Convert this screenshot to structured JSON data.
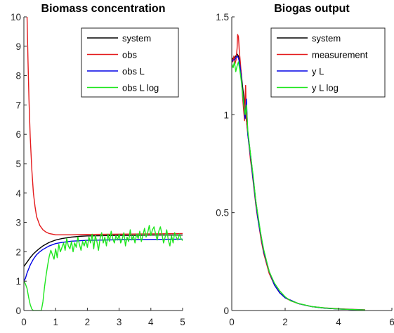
{
  "chart_data": [
    {
      "type": "line",
      "title": "Biomass concentration",
      "xlabel": "",
      "ylabel": "",
      "xlim": [
        0,
        5
      ],
      "ylim": [
        0,
        10
      ],
      "x_ticks": [
        0,
        1,
        2,
        3,
        4,
        5
      ],
      "y_ticks": [
        0,
        1,
        2,
        3,
        4,
        5,
        6,
        7,
        8,
        9,
        10
      ],
      "x_tick_labels": [
        "0",
        "1",
        "2",
        "3",
        "4",
        "5"
      ],
      "y_tick_labels": [
        "0",
        "1",
        "2",
        "3",
        "4",
        "5",
        "6",
        "7",
        "8",
        "9",
        "10"
      ],
      "grid": false,
      "legend_position": "top-right",
      "series": [
        {
          "name": "system",
          "color": "#000000",
          "x": [
            0,
            0.1,
            0.2,
            0.3,
            0.4,
            0.5,
            0.6,
            0.8,
            1.0,
            1.2,
            1.5,
            1.8,
            2.0,
            2.5,
            3.0,
            3.5,
            4.0,
            4.5,
            5.0
          ],
          "y": [
            1.5,
            1.65,
            1.8,
            1.93,
            2.03,
            2.12,
            2.2,
            2.32,
            2.4,
            2.45,
            2.5,
            2.53,
            2.54,
            2.55,
            2.56,
            2.56,
            2.57,
            2.57,
            2.57
          ]
        },
        {
          "name": "obs",
          "color": "#e41a1c",
          "x": [
            0.1,
            0.13,
            0.16,
            0.2,
            0.25,
            0.3,
            0.35,
            0.4,
            0.5,
            0.6,
            0.7,
            0.8,
            0.9,
            1.0,
            1.2,
            1.5,
            2.0,
            3.0,
            4.0,
            5.0
          ],
          "y": [
            10,
            8.5,
            7.2,
            5.9,
            4.8,
            4.0,
            3.55,
            3.2,
            2.9,
            2.75,
            2.67,
            2.62,
            2.6,
            2.58,
            2.58,
            2.58,
            2.59,
            2.6,
            2.61,
            2.62
          ]
        },
        {
          "name": "obs L",
          "color": "#0000e6",
          "x": [
            0,
            0.05,
            0.1,
            0.2,
            0.3,
            0.4,
            0.5,
            0.6,
            0.8,
            1.0,
            1.2,
            1.5,
            2.0,
            2.5,
            3.0,
            4.0,
            5.0
          ],
          "y": [
            1.0,
            1.1,
            1.28,
            1.55,
            1.75,
            1.9,
            2.0,
            2.08,
            2.2,
            2.28,
            2.32,
            2.36,
            2.39,
            2.4,
            2.41,
            2.42,
            2.43
          ]
        },
        {
          "name": "obs L log",
          "color": "#1ee61e",
          "x": [
            0,
            0.05,
            0.1,
            0.15,
            0.2,
            0.25,
            0.3,
            0.55,
            0.6,
            0.65,
            0.7,
            0.75,
            0.8,
            0.85,
            0.9,
            0.95,
            1.0,
            1.05,
            1.1,
            1.15,
            1.2,
            1.25,
            1.3,
            1.35,
            1.4,
            1.45,
            1.5,
            1.55,
            1.6,
            1.65,
            1.7,
            1.75,
            1.8,
            1.85,
            1.9,
            1.95,
            2.0,
            2.05,
            2.1,
            2.15,
            2.2,
            2.25,
            2.3,
            2.35,
            2.4,
            2.45,
            2.5,
            2.55,
            2.6,
            2.65,
            2.7,
            2.75,
            2.8,
            2.85,
            2.9,
            2.95,
            3.0,
            3.05,
            3.1,
            3.15,
            3.2,
            3.25,
            3.3,
            3.35,
            3.4,
            3.45,
            3.5,
            3.55,
            3.6,
            3.65,
            3.7,
            3.75,
            3.8,
            3.85,
            3.9,
            3.95,
            4.0,
            4.05,
            4.1,
            4.15,
            4.2,
            4.25,
            4.3,
            4.35,
            4.4,
            4.45,
            4.5,
            4.55,
            4.6,
            4.65,
            4.7,
            4.75,
            4.8,
            4.85,
            4.9,
            4.95,
            5.0
          ],
          "y": [
            1.0,
            0.9,
            0.75,
            0.45,
            0.2,
            0.05,
            0.0,
            0.0,
            0.3,
            0.8,
            1.2,
            1.55,
            1.85,
            2.05,
            1.9,
            1.75,
            2.1,
            1.8,
            2.25,
            2.0,
            2.15,
            2.3,
            2.05,
            2.45,
            2.2,
            2.1,
            2.35,
            2.0,
            2.3,
            2.15,
            2.5,
            2.25,
            2.05,
            2.35,
            2.2,
            2.4,
            2.15,
            2.5,
            2.3,
            2.6,
            2.1,
            2.55,
            2.35,
            2.05,
            2.45,
            2.65,
            2.3,
            2.5,
            2.2,
            2.6,
            2.35,
            2.7,
            2.45,
            2.3,
            2.55,
            2.4,
            2.6,
            2.3,
            2.45,
            2.65,
            2.2,
            2.5,
            2.35,
            2.75,
            2.4,
            2.55,
            2.3,
            2.6,
            2.45,
            2.7,
            2.35,
            2.55,
            2.8,
            2.5,
            2.65,
            2.9,
            2.55,
            2.75,
            2.85,
            2.6,
            2.4,
            2.7,
            2.85,
            2.6,
            2.3,
            2.5,
            2.75,
            2.4,
            2.2,
            2.55,
            2.3,
            2.65,
            2.5,
            2.4,
            2.6,
            2.45,
            2.38
          ]
        }
      ]
    },
    {
      "type": "line",
      "title": "Biogas output",
      "xlabel": "",
      "ylabel": "",
      "xlim": [
        0,
        6
      ],
      "ylim": [
        0,
        1.5
      ],
      "x_ticks": [
        0,
        2,
        4,
        6
      ],
      "y_ticks": [
        0,
        0.5,
        1,
        1.5
      ],
      "x_tick_labels": [
        "0",
        "2",
        "4",
        "6"
      ],
      "y_tick_labels": [
        "0",
        "0.5",
        "1",
        "1.5"
      ],
      "grid": false,
      "legend_position": "top-right",
      "series": [
        {
          "name": "system",
          "color": "#000000",
          "x": [
            0,
            0.05,
            0.1,
            0.15,
            0.2,
            0.25,
            0.3,
            0.35,
            0.4,
            0.45,
            0.5,
            0.55,
            0.6,
            0.7,
            0.8,
            0.9,
            1.0,
            1.2,
            1.4,
            1.6,
            1.8,
            2.0,
            2.5,
            3.0,
            3.5,
            4.0,
            4.5,
            5.0
          ],
          "y": [
            1.28,
            1.29,
            1.29,
            1.3,
            1.31,
            1.3,
            1.27,
            1.22,
            1.15,
            1.09,
            1.02,
            0.97,
            0.91,
            0.8,
            0.68,
            0.56,
            0.46,
            0.3,
            0.2,
            0.13,
            0.09,
            0.065,
            0.035,
            0.02,
            0.012,
            0.008,
            0.005,
            0.003
          ]
        },
        {
          "name": "measurement",
          "color": "#e41a1c",
          "x": [
            0,
            0.04,
            0.08,
            0.12,
            0.16,
            0.2,
            0.22,
            0.25,
            0.28,
            0.32,
            0.36,
            0.4,
            0.44,
            0.48,
            0.5,
            0.52,
            0.55,
            0.6,
            0.65,
            0.7,
            0.75,
            0.8,
            0.85,
            0.9,
            0.95,
            1.0,
            1.1,
            1.2,
            1.3,
            1.4,
            1.5,
            1.6,
            1.7,
            1.8,
            1.9,
            2.0,
            2.2,
            2.5,
            3.0,
            3.5,
            4.0,
            4.5,
            5.0
          ],
          "y": [
            1.29,
            1.27,
            1.3,
            1.26,
            1.28,
            1.34,
            1.41,
            1.4,
            1.33,
            1.27,
            1.2,
            1.1,
            1.03,
            0.97,
            1.1,
            1.15,
            0.97,
            0.9,
            0.84,
            0.77,
            0.72,
            0.66,
            0.6,
            0.54,
            0.49,
            0.45,
            0.36,
            0.29,
            0.24,
            0.19,
            0.16,
            0.13,
            0.11,
            0.09,
            0.08,
            0.065,
            0.05,
            0.035,
            0.02,
            0.013,
            0.009,
            0.006,
            0.004
          ]
        },
        {
          "name": "y L",
          "color": "#0000e6",
          "x": [
            0,
            0.05,
            0.1,
            0.15,
            0.2,
            0.25,
            0.3,
            0.35,
            0.4,
            0.45,
            0.5,
            0.55,
            0.6,
            0.7,
            0.8,
            0.9,
            1.0,
            1.2,
            1.4,
            1.6,
            1.8,
            2.0,
            2.5,
            3.0,
            3.5,
            4.0,
            4.5,
            5.0
          ],
          "y": [
            1.27,
            1.28,
            1.28,
            1.29,
            1.3,
            1.29,
            1.26,
            1.2,
            1.12,
            1.05,
            0.98,
            1.08,
            0.9,
            0.79,
            0.67,
            0.55,
            0.45,
            0.3,
            0.2,
            0.13,
            0.09,
            0.065,
            0.035,
            0.02,
            0.012,
            0.008,
            0.005,
            0.003
          ]
        },
        {
          "name": "y L log",
          "color": "#1ee61e",
          "x": [
            0,
            0.05,
            0.1,
            0.15,
            0.2,
            0.25,
            0.3,
            0.35,
            0.4,
            0.45,
            0.5,
            0.55,
            0.6,
            0.7,
            0.8,
            0.9,
            1.0,
            1.1,
            1.2,
            1.4,
            1.6,
            1.8,
            2.0,
            2.2,
            2.5,
            3.0,
            3.5,
            4.0,
            4.5,
            5.0
          ],
          "y": [
            1.26,
            1.24,
            1.27,
            1.22,
            1.25,
            1.27,
            1.23,
            1.18,
            1.12,
            1.05,
            1.0,
            1.05,
            0.92,
            0.8,
            0.69,
            0.56,
            0.47,
            0.38,
            0.31,
            0.2,
            0.14,
            0.1,
            0.07,
            0.05,
            0.036,
            0.02,
            0.013,
            0.008,
            0.005,
            0.003
          ]
        }
      ]
    }
  ]
}
